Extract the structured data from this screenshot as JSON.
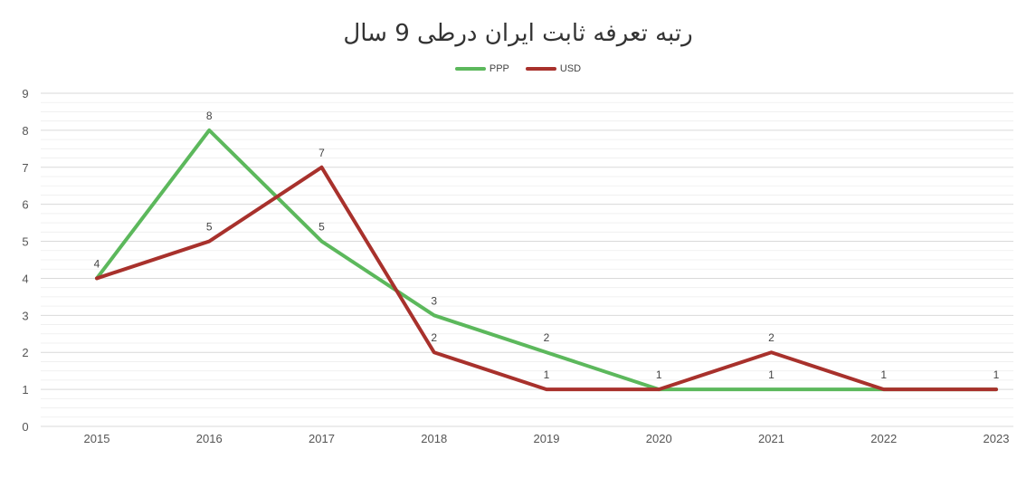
{
  "chart_data": {
    "type": "line",
    "title": "رتبه تعرفه ثابت ایران درطی 9 سال",
    "xlabel": "",
    "ylabel": "",
    "categories": [
      "2015",
      "2016",
      "2017",
      "2018",
      "2019",
      "2020",
      "2021",
      "2022",
      "2023"
    ],
    "ylim": [
      0,
      9
    ],
    "yticks": [
      "0",
      "1",
      "2",
      "3",
      "4",
      "5",
      "6",
      "7",
      "8",
      "9"
    ],
    "grid": true,
    "legend": "top-center",
    "series": [
      {
        "name": "PPP",
        "color": "#5cb85c",
        "values": [
          4,
          8,
          5,
          3,
          2,
          1,
          1,
          1,
          1
        ],
        "data_labels": [
          "",
          "8",
          "5",
          "3",
          "2",
          "",
          "1",
          "",
          ""
        ]
      },
      {
        "name": "USD",
        "color": "#a8312c",
        "values": [
          4,
          5,
          7,
          2,
          1,
          1,
          2,
          1,
          1
        ],
        "data_labels": [
          "4",
          "5",
          "7",
          "2",
          "1",
          "1",
          "2",
          "1",
          "1"
        ]
      }
    ]
  }
}
